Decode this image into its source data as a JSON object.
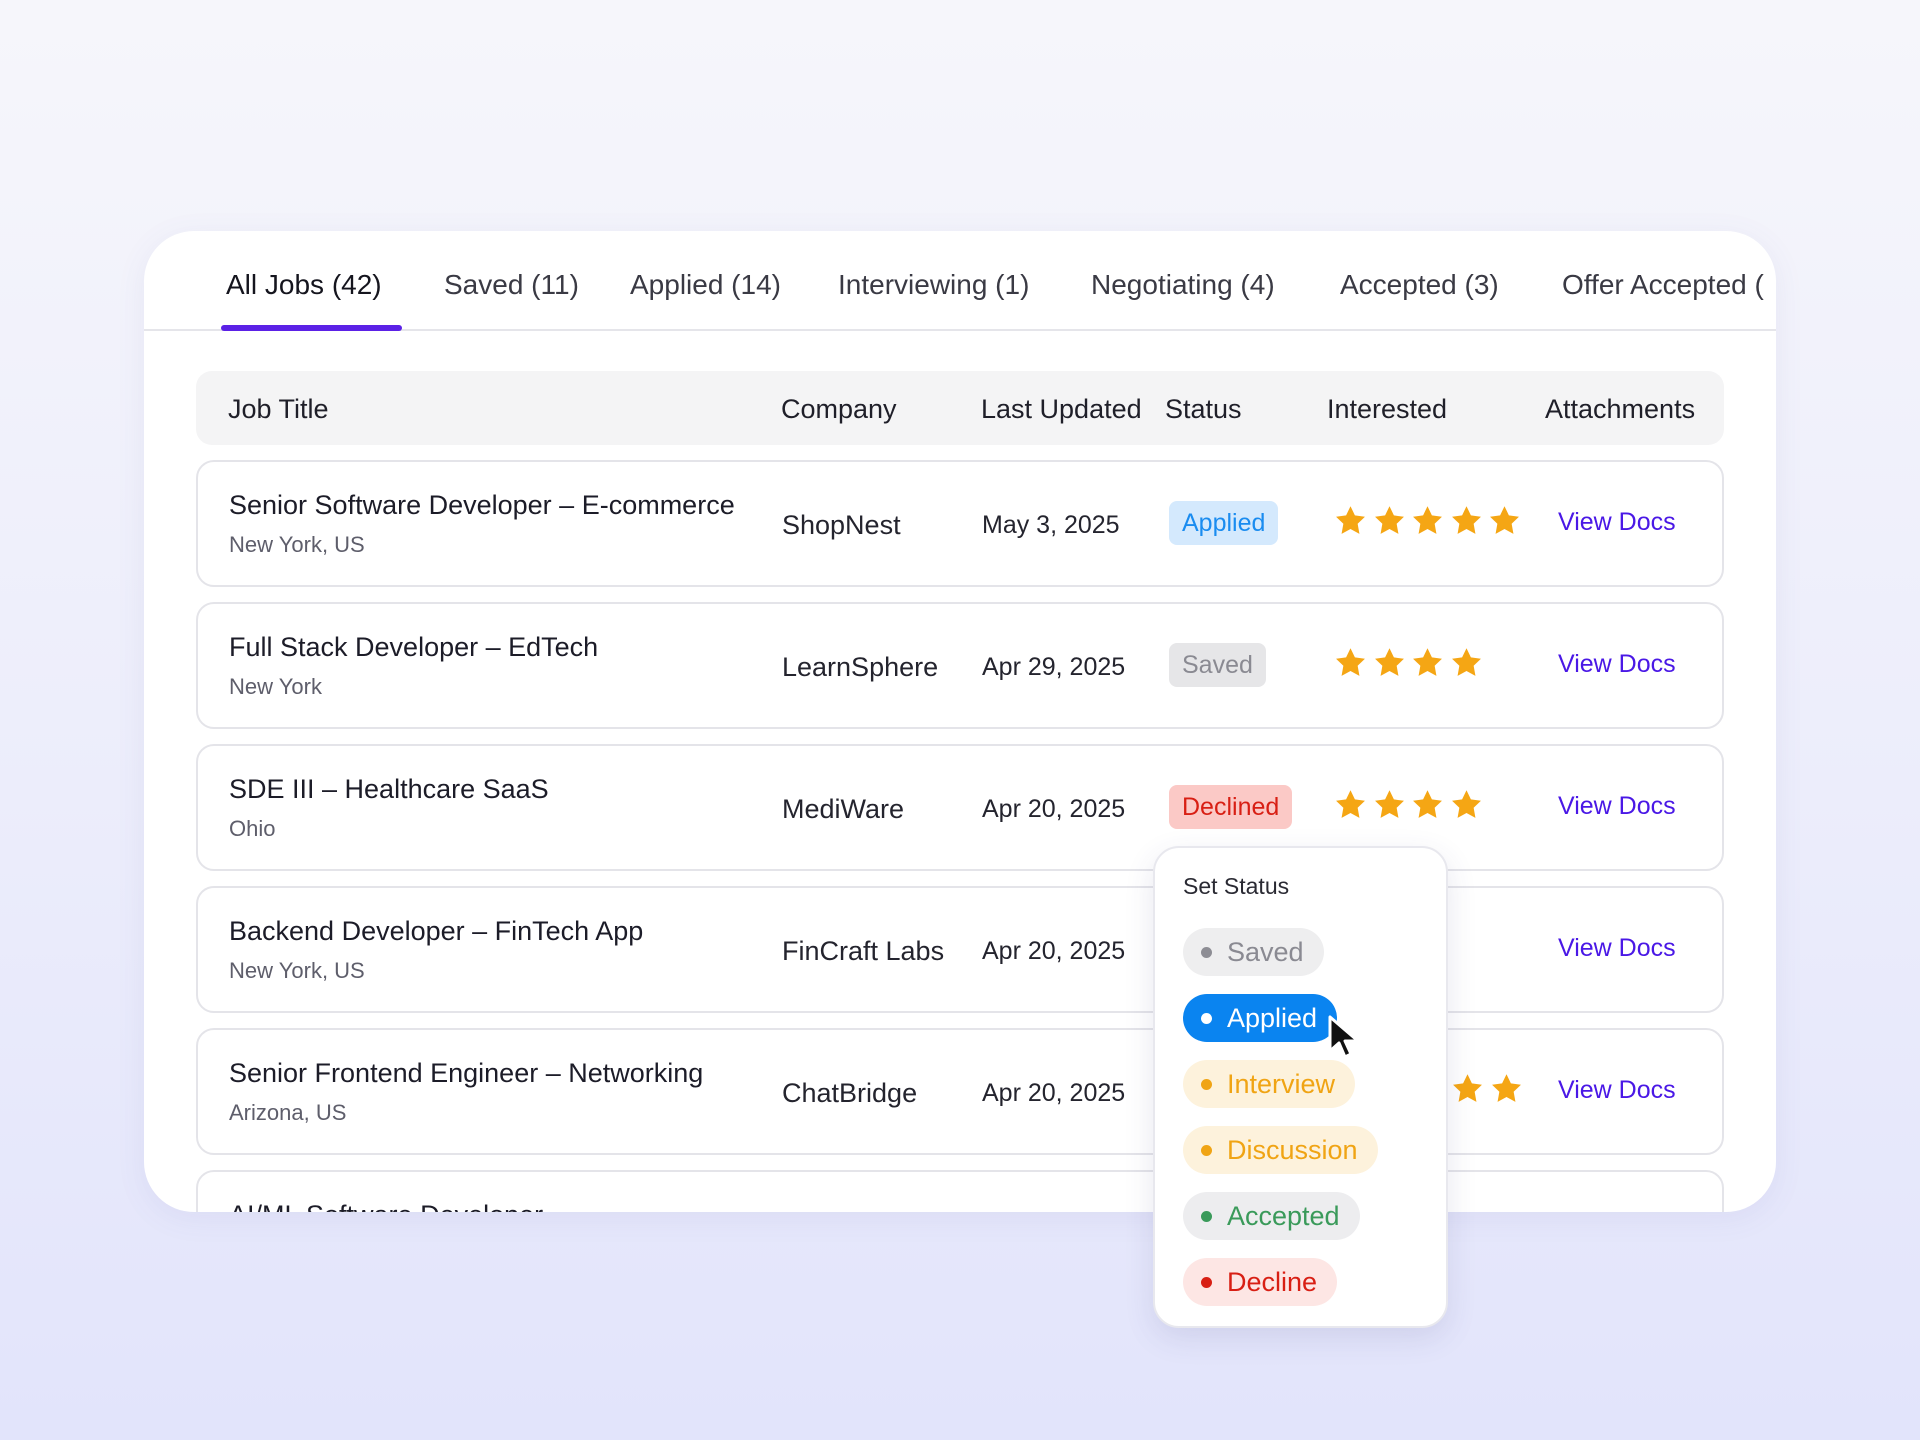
{
  "tabs": [
    {
      "label": "All Jobs (42)",
      "active": true
    },
    {
      "label": "Saved (11)"
    },
    {
      "label": "Applied (14)"
    },
    {
      "label": "Interviewing (1)"
    },
    {
      "label": "Negotiating (4)"
    },
    {
      "label": "Accepted (3)"
    },
    {
      "label": "Offer Accepted ("
    }
  ],
  "table": {
    "headers": [
      "Job Title",
      "Company",
      "Last Updated",
      "Status",
      "Interested",
      "Attachments"
    ],
    "rows": [
      {
        "title": "Senior Software Developer – E-commerce",
        "location": "New York, US",
        "company": "ShopNest",
        "updated": "May 3, 2025",
        "status": "Applied",
        "stars": 5,
        "docs": "View Docs"
      },
      {
        "title": "Full Stack Developer – EdTech",
        "location": "New York",
        "company": "LearnSphere",
        "updated": "Apr 29, 2025",
        "status": "Saved",
        "stars": 4,
        "docs": "View Docs"
      },
      {
        "title": "SDE III – Healthcare SaaS",
        "location": "Ohio",
        "company": "MediWare",
        "updated": "Apr 20, 2025",
        "status": "Declined",
        "stars": 4,
        "docs": "View Docs"
      },
      {
        "title": "Backend Developer – FinTech App",
        "location": "New York, US",
        "company": "FinCraft Labs",
        "updated": "Apr 20, 2025",
        "docs": "View Docs"
      },
      {
        "title": "Senior Frontend Engineer – Networking",
        "location": "Arizona, US",
        "company": "ChatBridge",
        "updated": "Apr 20, 2025",
        "docs": "View Docs"
      },
      {
        "title": "AI/ML Software Developer"
      }
    ]
  },
  "status_menu": {
    "title": "Set Status",
    "options": [
      "Saved",
      "Applied",
      "Interview",
      "Discussion",
      "Accepted",
      "Decline"
    ],
    "highlighted": "Applied"
  },
  "colors": {
    "accent": "#5b21e6",
    "link": "#4a18e6",
    "star": "#f5a614",
    "applied": "#0a84f0",
    "declined": "#d81f14",
    "accepted": "#3a9a5a"
  },
  "icons": {
    "star": "star-icon",
    "cursor": "pointer-cursor-icon"
  }
}
